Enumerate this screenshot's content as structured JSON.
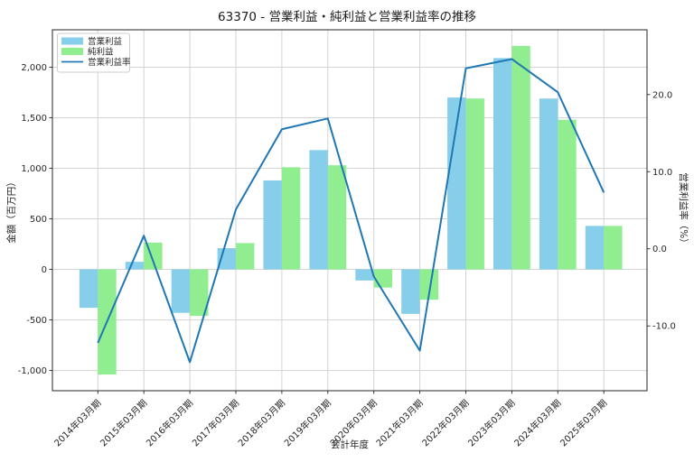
{
  "title": "63370 - 営業利益・純利益と営業利益率の推移",
  "chart_data": {
    "type": "bar",
    "subtype": "grouped-bars-with-line-overlay",
    "categories": [
      "2014年03月期",
      "2015年03月期",
      "2016年03月期",
      "2017年03月期",
      "2018年03月期",
      "2019年03月期",
      "2020年03月期",
      "2021年03月期",
      "2022年03月期",
      "2023年03月期",
      "2024年03月期",
      "2025年03月期"
    ],
    "series": [
      {
        "name": "営業利益",
        "type": "bar",
        "axis": "left",
        "color": "#87CEEB",
        "values": [
          -380,
          75,
          -430,
          210,
          880,
          1180,
          -110,
          -440,
          1700,
          2090,
          1690,
          430
        ]
      },
      {
        "name": "純利益",
        "type": "bar",
        "axis": "left",
        "color": "#90EE90",
        "values": [
          -1040,
          265,
          -460,
          260,
          1010,
          1030,
          -180,
          -300,
          1690,
          2210,
          1480,
          430
        ]
      },
      {
        "name": "営業利益率",
        "type": "line",
        "axis": "right",
        "color": "#1f77b4",
        "values": [
          -12.2,
          1.7,
          -14.7,
          5.1,
          15.5,
          16.9,
          -3.6,
          -13.2,
          23.4,
          24.6,
          20.3,
          7.3
        ]
      }
    ],
    "xlabel": "会計年度",
    "ylabel_left": "金額（百万円）",
    "ylabel_right": "営業利益率（%）",
    "ylim_left": [
      -1200,
      2370
    ],
    "ylim_right": [
      -18.4,
      28.4
    ],
    "yticks_left": [
      -1000,
      -500,
      0,
      500,
      1000,
      1500,
      2000
    ],
    "yticks_right": [
      -10.0,
      0.0,
      10.0,
      20.0
    ],
    "grid": true,
    "legend_position": "upper left",
    "colors": {
      "grid": "#d3d3d3",
      "spine": "#262626",
      "text": "#262626",
      "background": "#ffffff"
    }
  }
}
